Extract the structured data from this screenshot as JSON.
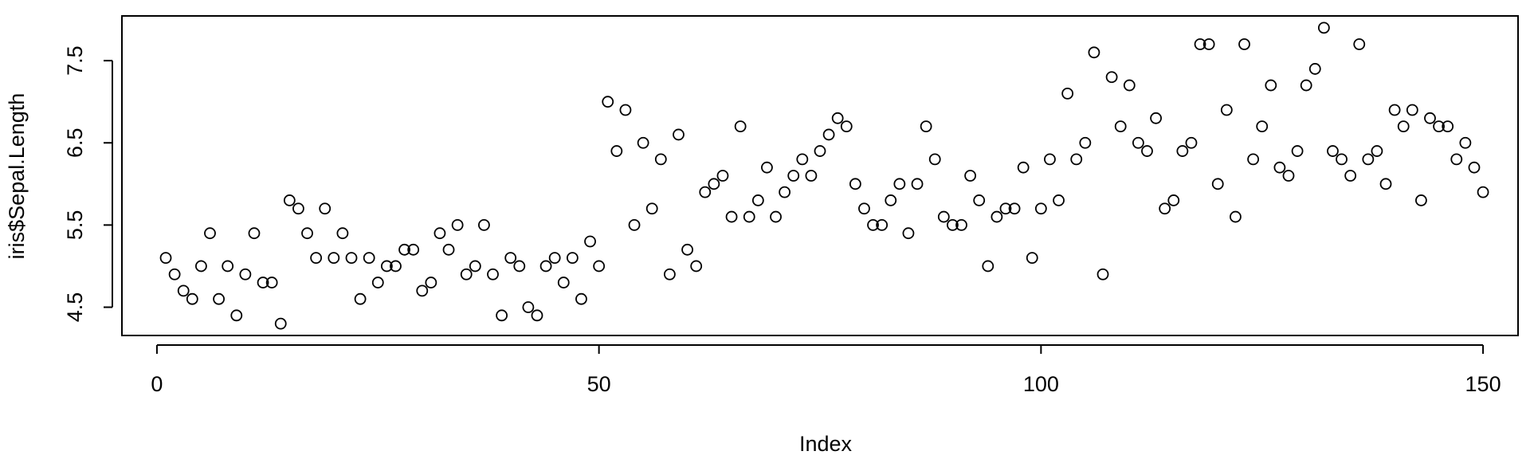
{
  "chart_data": {
    "type": "scatter",
    "title": "",
    "xlabel": "Index",
    "ylabel": "iris$Sepal.Length",
    "xlim": [
      -3.96,
      153.96
    ],
    "ylim": [
      4.156,
      8.044
    ],
    "x_ticks": [
      0,
      50,
      100,
      150
    ],
    "x_tick_labels": [
      "0",
      "50",
      "100",
      "150"
    ],
    "y_ticks": [
      4.5,
      5.5,
      6.5,
      7.5
    ],
    "y_tick_labels": [
      "4.5",
      "5.5",
      "6.5",
      "7.5"
    ],
    "grid": false,
    "marker": "open-circle",
    "x": [
      1,
      2,
      3,
      4,
      5,
      6,
      7,
      8,
      9,
      10,
      11,
      12,
      13,
      14,
      15,
      16,
      17,
      18,
      19,
      20,
      21,
      22,
      23,
      24,
      25,
      26,
      27,
      28,
      29,
      30,
      31,
      32,
      33,
      34,
      35,
      36,
      37,
      38,
      39,
      40,
      41,
      42,
      43,
      44,
      45,
      46,
      47,
      48,
      49,
      50,
      51,
      52,
      53,
      54,
      55,
      56,
      57,
      58,
      59,
      60,
      61,
      62,
      63,
      64,
      65,
      66,
      67,
      68,
      69,
      70,
      71,
      72,
      73,
      74,
      75,
      76,
      77,
      78,
      79,
      80,
      81,
      82,
      83,
      84,
      85,
      86,
      87,
      88,
      89,
      90,
      91,
      92,
      93,
      94,
      95,
      96,
      97,
      98,
      99,
      100,
      101,
      102,
      103,
      104,
      105,
      106,
      107,
      108,
      109,
      110,
      111,
      112,
      113,
      114,
      115,
      116,
      117,
      118,
      119,
      120,
      121,
      122,
      123,
      124,
      125,
      126,
      127,
      128,
      129,
      130,
      131,
      132,
      133,
      134,
      135,
      136,
      137,
      138,
      139,
      140,
      141,
      142,
      143,
      144,
      145,
      146,
      147,
      148,
      149,
      150
    ],
    "y": [
      5.1,
      4.9,
      4.7,
      4.6,
      5.0,
      5.4,
      4.6,
      5.0,
      4.4,
      4.9,
      5.4,
      4.8,
      4.8,
      4.3,
      5.8,
      5.7,
      5.4,
      5.1,
      5.7,
      5.1,
      5.4,
      5.1,
      4.6,
      5.1,
      4.8,
      5.0,
      5.0,
      5.2,
      5.2,
      4.7,
      4.8,
      5.4,
      5.2,
      5.5,
      4.9,
      5.0,
      5.5,
      4.9,
      4.4,
      5.1,
      5.0,
      4.5,
      4.4,
      5.0,
      5.1,
      4.8,
      5.1,
      4.6,
      5.3,
      5.0,
      7.0,
      6.4,
      6.9,
      5.5,
      6.5,
      5.7,
      6.3,
      4.9,
      6.6,
      5.2,
      5.0,
      5.9,
      6.0,
      6.1,
      5.6,
      6.7,
      5.6,
      5.8,
      6.2,
      5.6,
      5.9,
      6.1,
      6.3,
      6.1,
      6.4,
      6.6,
      6.8,
      6.7,
      6.0,
      5.7,
      5.5,
      5.5,
      5.8,
      6.0,
      5.4,
      6.0,
      6.7,
      6.3,
      5.6,
      5.5,
      5.5,
      6.1,
      5.8,
      5.0,
      5.6,
      5.7,
      5.7,
      6.2,
      5.1,
      5.7,
      6.3,
      5.8,
      7.1,
      6.3,
      6.5,
      7.6,
      4.9,
      7.3,
      6.7,
      7.2,
      6.5,
      6.4,
      6.8,
      5.7,
      5.8,
      6.4,
      6.5,
      7.7,
      7.7,
      6.0,
      6.9,
      5.6,
      7.7,
      6.3,
      6.7,
      7.2,
      6.2,
      6.1,
      6.4,
      7.2,
      7.4,
      7.9,
      6.4,
      6.3,
      6.1,
      7.7,
      6.3,
      6.4,
      6.0,
      6.9,
      6.7,
      6.9,
      5.8,
      6.8,
      6.7,
      6.7,
      6.3,
      6.5,
      6.2,
      5.9
    ]
  }
}
